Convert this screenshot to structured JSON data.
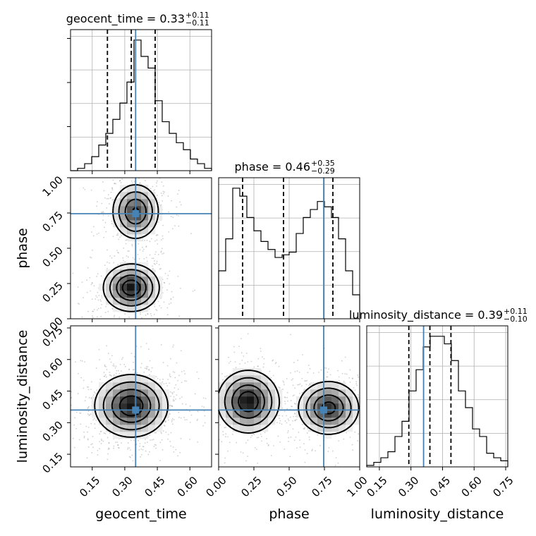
{
  "chart_data": {
    "type": "corner",
    "parameters": [
      "geocent_time",
      "phase",
      "luminosity_distance"
    ],
    "titles": [
      {
        "base": "geocent_time = 0.33",
        "plus": "+0.11",
        "minus": "−0.11"
      },
      {
        "base": "phase = 0.46",
        "plus": "+0.35",
        "minus": "−0.29"
      },
      {
        "base": "luminosity_distance = 0.39",
        "plus": "+0.11",
        "minus": "−0.10"
      }
    ],
    "ranges": [
      [
        0.05,
        0.7
      ],
      [
        0.0,
        1.0
      ],
      [
        0.09,
        0.76
      ]
    ],
    "ticks": [
      [
        0.15,
        0.3,
        0.45,
        0.6
      ],
      [
        0.0,
        0.25,
        0.5,
        0.75,
        1.0
      ],
      [
        0.15,
        0.3,
        0.45,
        0.6,
        0.75
      ]
    ],
    "tick_labels": [
      [
        "0.15",
        "0.30",
        "0.45",
        "0.60"
      ],
      [
        "0.00",
        "0.25",
        "0.50",
        "0.75",
        "1.00"
      ],
      [
        "0.15",
        "0.30",
        "0.45",
        "0.60",
        "0.75"
      ]
    ],
    "truths": [
      0.35,
      0.745,
      0.36
    ],
    "quantiles": [
      [
        0.22,
        0.33,
        0.44
      ],
      [
        0.17,
        0.46,
        0.81
      ],
      [
        0.29,
        0.39,
        0.49
      ]
    ],
    "histograms": [
      {
        "edges_from": 0.05,
        "edges_to": 0.7,
        "counts": [
          0,
          1,
          3,
          6,
          11,
          16,
          22,
          29,
          38,
          56,
          49,
          44,
          30,
          21,
          16,
          12,
          9,
          5,
          3,
          1
        ]
      },
      {
        "edges_from": 0.0,
        "edges_to": 1.0,
        "counts": [
          18,
          30,
          49,
          46,
          38,
          33,
          29,
          26,
          23,
          24,
          25,
          32,
          38,
          41,
          44,
          42,
          38,
          30,
          18,
          9
        ]
      },
      {
        "edges_from": 0.09,
        "edges_to": 0.76,
        "counts": [
          1,
          3,
          6,
          10,
          20,
          30,
          50,
          64,
          79,
          86,
          86,
          81,
          70,
          50,
          39,
          25,
          20,
          9,
          6,
          4
        ]
      }
    ],
    "pairs": [
      {
        "x": 0,
        "y": 1,
        "modes": [
          {
            "cx": 0.33,
            "cy": 0.22,
            "sx": 0.065,
            "sy": 0.085,
            "w": 1.0
          },
          {
            "cx": 0.35,
            "cy": 0.76,
            "sx": 0.055,
            "sy": 0.1,
            "w": 0.85
          }
        ]
      },
      {
        "x": 0,
        "y": 2,
        "modes": [
          {
            "cx": 0.33,
            "cy": 0.38,
            "sx": 0.085,
            "sy": 0.075,
            "w": 1.0
          }
        ]
      },
      {
        "x": 1,
        "y": 2,
        "modes": [
          {
            "cx": 0.21,
            "cy": 0.4,
            "sx": 0.11,
            "sy": 0.075,
            "w": 1.0
          },
          {
            "cx": 0.78,
            "cy": 0.37,
            "sx": 0.11,
            "sy": 0.065,
            "w": 0.9
          }
        ]
      }
    ],
    "grid": true,
    "colors": {
      "truth": "#4682b4",
      "line": "#000000",
      "grid": "#b0b0b0"
    }
  }
}
